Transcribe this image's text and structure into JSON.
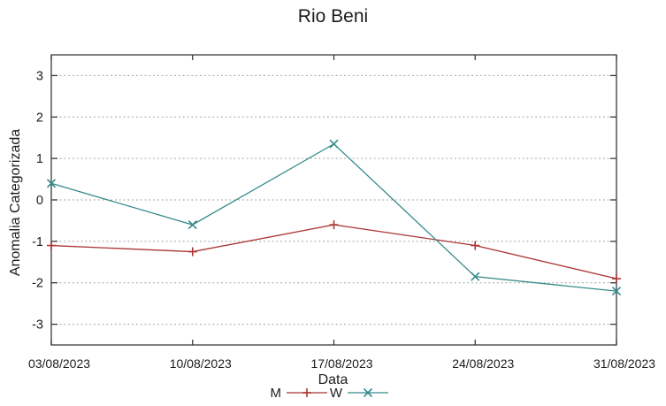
{
  "chart_data": {
    "type": "line",
    "title": "Rio Beni",
    "xlabel": "Data",
    "ylabel": "Anomalia Categorizada",
    "categories": [
      "03/08/2023",
      "10/08/2023",
      "17/08/2023",
      "24/08/2023",
      "31/08/2023"
    ],
    "series": [
      {
        "name": "M",
        "color": "#ab3434",
        "marker": "plus",
        "values": [
          -1.1,
          -1.25,
          -0.6,
          -1.1,
          -1.9
        ]
      },
      {
        "name": "W",
        "color": "#358a8a",
        "marker": "cross",
        "values": [
          0.4,
          -0.6,
          1.35,
          -1.85,
          -2.2
        ]
      }
    ],
    "ylim": [
      -3.5,
      3.5
    ],
    "yticks": [
      -3,
      -2,
      -1,
      0,
      1,
      2,
      3
    ],
    "grid": {
      "horizontal": true,
      "vertical": false,
      "style": "dotted",
      "color": "#9a9a9a"
    },
    "legend_position": "bottom-center",
    "axis_color": "#3a3a3a",
    "text_color": "#1c1c1c"
  }
}
